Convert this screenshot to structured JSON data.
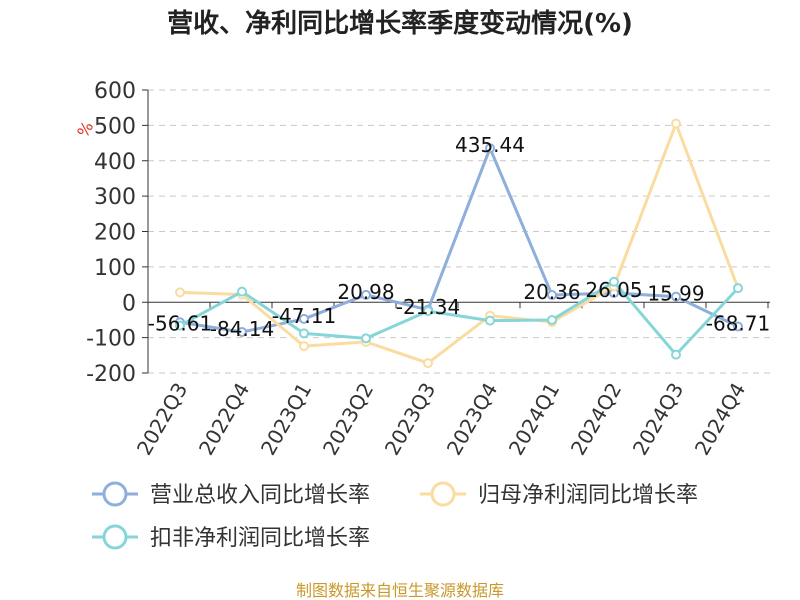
{
  "chart_data": {
    "type": "line",
    "title": "营收、净利同比增长率季度变动情况(%)",
    "ylabel": "%",
    "ylim": [
      -200,
      600
    ],
    "yticks": [
      600,
      500,
      400,
      300,
      200,
      100,
      0,
      -100,
      -200
    ],
    "grid": true,
    "legend_position": "bottom",
    "categories": [
      "2022Q3",
      "2022Q4",
      "2023Q1",
      "2023Q2",
      "2023Q3",
      "2023Q4",
      "2024Q1",
      "2024Q2",
      "2024Q3",
      "2024Q4"
    ],
    "series": [
      {
        "name": "营业总收入同比增长率",
        "color": "#8eaedb",
        "values": [
          -56.61,
          -84.14,
          -47.11,
          20.98,
          -21.34,
          435.44,
          20.36,
          26.05,
          15.99,
          -68.71
        ],
        "labels": [
          "-56.61",
          "-84.14",
          "-47.11",
          "20.98",
          "-21.34",
          "435.44",
          "20.36",
          "26.05",
          "15.99",
          "-68.71"
        ]
      },
      {
        "name": "归母净利润同比增长率",
        "color": "#fbdca0",
        "values": [
          28,
          22,
          -124,
          -112,
          -172,
          -38,
          -56,
          45,
          505,
          40
        ]
      },
      {
        "name": "扣非净利润同比增长率",
        "color": "#86d6d9",
        "values": [
          -66,
          30,
          -88,
          -102,
          -25,
          -52,
          -50,
          58,
          -148,
          40
        ]
      }
    ]
  },
  "source_text": "制图数据来自恒生聚源数据库"
}
